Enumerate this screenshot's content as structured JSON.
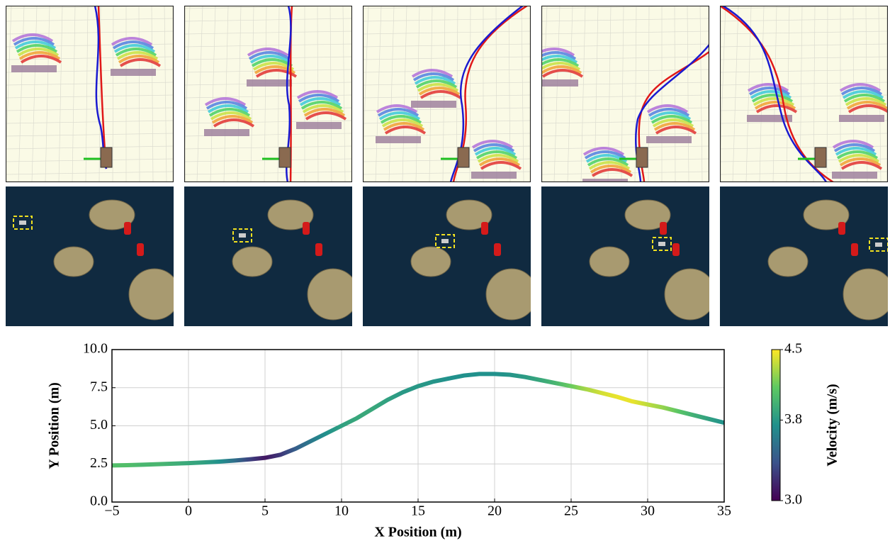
{
  "chart_data": {
    "type": "line",
    "xlabel": "X Position (m)",
    "ylabel": "Y Position (m)",
    "x": [
      -5,
      -4,
      -3,
      -2,
      -1,
      0,
      1,
      2,
      3,
      4,
      5,
      6,
      7,
      8,
      9,
      10,
      11,
      12,
      13,
      14,
      15,
      16,
      17,
      18,
      19,
      20,
      21,
      22,
      23,
      24,
      25,
      26,
      27,
      28,
      29,
      30,
      31,
      32,
      33,
      34,
      35
    ],
    "values": [
      2.4,
      2.42,
      2.45,
      2.48,
      2.52,
      2.55,
      2.6,
      2.65,
      2.72,
      2.8,
      2.9,
      3.1,
      3.5,
      4.0,
      4.5,
      5.0,
      5.5,
      6.1,
      6.7,
      7.2,
      7.6,
      7.9,
      8.1,
      8.3,
      8.4,
      8.4,
      8.35,
      8.2,
      8.0,
      7.8,
      7.6,
      7.4,
      7.15,
      6.9,
      6.6,
      6.4,
      6.2,
      5.95,
      5.7,
      5.45,
      5.2
    ],
    "velocity": [
      4.05,
      4.05,
      4.0,
      4.0,
      3.95,
      3.9,
      3.85,
      3.75,
      3.55,
      3.3,
      3.1,
      3.25,
      3.45,
      3.6,
      3.75,
      3.85,
      3.9,
      3.9,
      3.85,
      3.8,
      3.8,
      3.78,
      3.75,
      3.75,
      3.75,
      3.75,
      3.78,
      3.82,
      3.9,
      4.0,
      4.15,
      4.3,
      4.4,
      4.45,
      4.45,
      4.35,
      4.25,
      4.1,
      3.95,
      3.85,
      3.75
    ],
    "xlim": [
      -5,
      35
    ],
    "ylim": [
      0,
      10
    ],
    "xticks": [
      {
        "value": -5,
        "label": "−5"
      },
      0,
      5,
      10,
      15,
      20,
      25,
      30,
      35
    ],
    "yticks": [
      {
        "value": 0,
        "label": "0.0"
      },
      2.5,
      {
        "value": 5,
        "label": "5.0"
      },
      7.5,
      {
        "value": 10,
        "label": "10.0"
      }
    ],
    "grid": true,
    "colorbar": {
      "label": "Velocity (m/s)",
      "lim": [
        3.0,
        4.5
      ],
      "ticks": [
        {
          "value": 3,
          "label": "3.0"
        },
        3.8,
        4.5
      ]
    }
  }
}
